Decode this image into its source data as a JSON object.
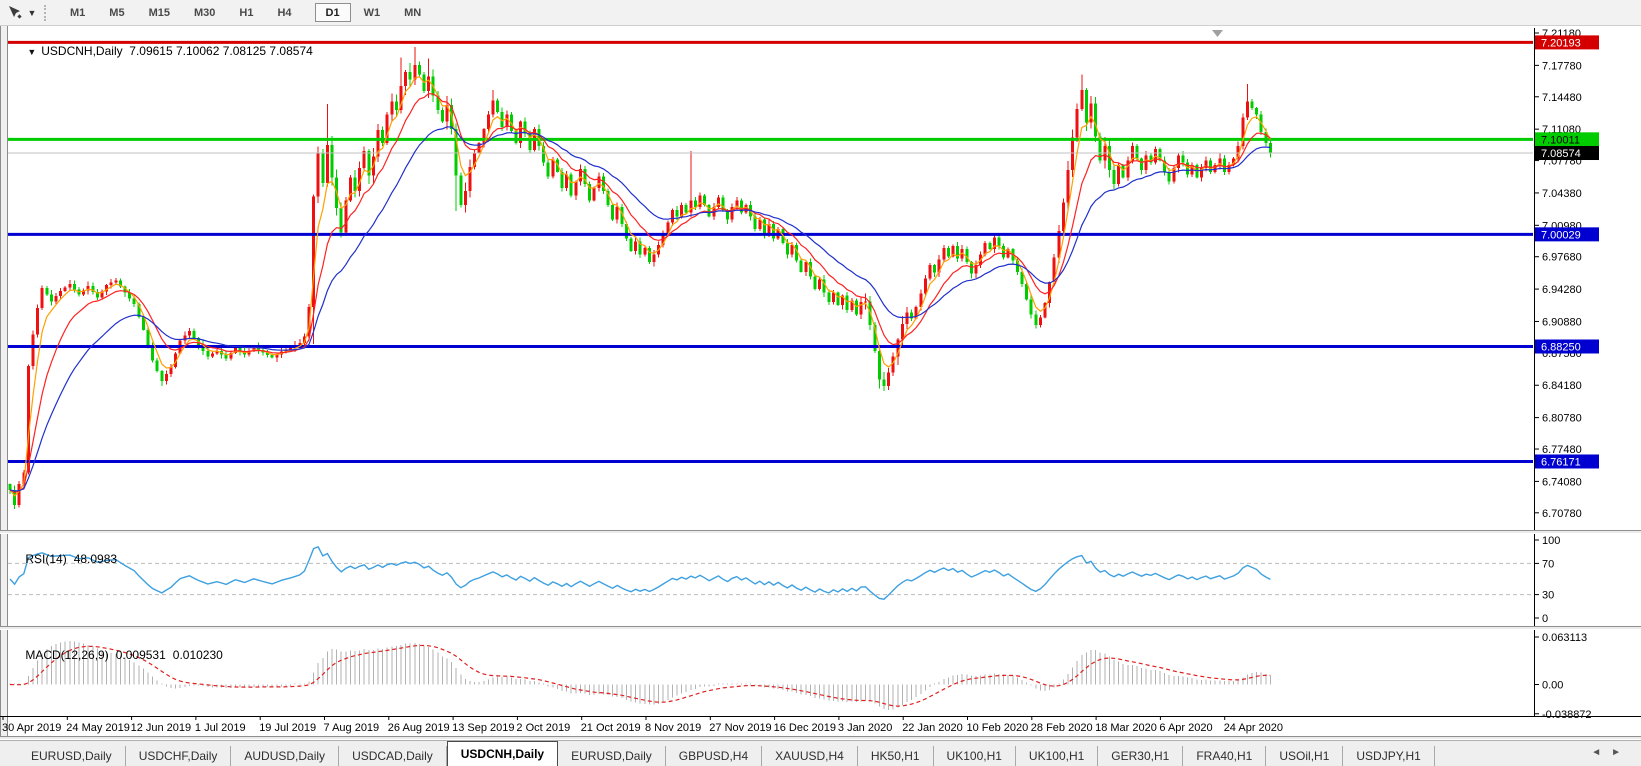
{
  "window": {
    "toolbar": {
      "timeframes": [
        "M1",
        "M5",
        "M15",
        "M30",
        "H1",
        "H4",
        "D1",
        "W1",
        "MN"
      ],
      "active_timeframe": "D1"
    }
  },
  "chart_data": {
    "type": "candlestick+indicators",
    "symbol": "USDCNH",
    "period": "Daily",
    "title": {
      "collapse_glyph": "▼",
      "symbol": "USDCNH,Daily",
      "ohlc_text": "7.09615 7.10062 7.08125 7.08574",
      "open": "7.09615",
      "high": "7.10062",
      "low": "7.08125",
      "close": "7.08574"
    },
    "y_axis_ticks": [
      "7.21180",
      "7.17780",
      "7.14480",
      "7.11080",
      "7.07780",
      "7.04380",
      "7.00980",
      "6.97680",
      "6.94280",
      "6.90880",
      "6.87580",
      "6.84180",
      "6.80780",
      "6.77480",
      "6.74080",
      "6.70780"
    ],
    "price_levels": [
      {
        "label": "7.20193",
        "value": 7.20193,
        "line_color": "#d40000",
        "line_width": 3,
        "badge_bg": "#d40000",
        "badge_fg": "#ffffff",
        "kind": "resistance"
      },
      {
        "label": "7.10011",
        "value": 7.10011,
        "line_color": "#00cc00",
        "line_width": 3,
        "badge_bg": "#00cc00",
        "badge_fg": "#000000",
        "kind": "level"
      },
      {
        "label": "7.00029",
        "value": 7.00029,
        "line_color": "#0000d0",
        "line_width": 3,
        "badge_bg": "#0000d0",
        "badge_fg": "#ffffff",
        "kind": "support"
      },
      {
        "label": "6.88250",
        "value": 6.8825,
        "line_color": "#0000d0",
        "line_width": 3,
        "badge_bg": "#0000d0",
        "badge_fg": "#ffffff",
        "kind": "support"
      },
      {
        "label": "6.76171",
        "value": 6.76171,
        "line_color": "#0000d0",
        "line_width": 3,
        "badge_bg": "#0000d0",
        "badge_fg": "#ffffff",
        "kind": "support"
      }
    ],
    "current_price": {
      "label": "7.08574",
      "value": 7.08574,
      "line_color": "#c0c0c0",
      "badge_bg": "#000000",
      "badge_fg": "#ffffff"
    },
    "x_axis_labels": [
      "30 Apr 2019",
      "24 May 2019",
      "12 Jun 2019",
      "1 Jul 2019",
      "19 Jul 2019",
      "7 Aug 2019",
      "26 Aug 2019",
      "13 Sep 2019",
      "2 Oct 2019",
      "21 Oct 2019",
      "8 Nov 2019",
      "27 Nov 2019",
      "16 Dec 2019",
      "3 Jan 2020",
      "22 Jan 2020",
      "10 Feb 2020",
      "28 Feb 2020",
      "18 Mar 2020",
      "6 Apr 2020",
      "24 Apr 2020"
    ],
    "colors": {
      "bull_candle": "#ee1111",
      "bear_candle": "#00cc00",
      "rsi_line": "#3da0e0",
      "macd_hist": "#b2b2b2",
      "macd_signal": "#e02020"
    },
    "candles": {
      "count": 275,
      "anchors": [
        [
          0,
          6.732
        ],
        [
          1,
          6.716
        ],
        [
          2,
          6.738
        ],
        [
          3,
          6.75
        ],
        [
          4,
          6.862
        ],
        [
          5,
          6.895
        ],
        [
          6,
          6.923
        ],
        [
          7,
          6.944
        ],
        [
          9,
          6.93
        ],
        [
          11,
          6.941
        ],
        [
          13,
          6.948
        ],
        [
          15,
          6.937
        ],
        [
          17,
          6.946
        ],
        [
          19,
          6.934
        ],
        [
          21,
          6.947
        ],
        [
          23,
          6.952
        ],
        [
          25,
          6.939
        ],
        [
          27,
          6.927
        ],
        [
          29,
          6.9
        ],
        [
          31,
          6.868
        ],
        [
          33,
          6.846
        ],
        [
          35,
          6.861
        ],
        [
          37,
          6.889
        ],
        [
          39,
          6.899
        ],
        [
          41,
          6.884
        ],
        [
          43,
          6.872
        ],
        [
          45,
          6.878
        ],
        [
          47,
          6.87
        ],
        [
          49,
          6.881
        ],
        [
          51,
          6.874
        ],
        [
          53,
          6.882
        ],
        [
          55,
          6.876
        ],
        [
          57,
          6.871
        ],
        [
          59,
          6.877
        ],
        [
          61,
          6.881
        ],
        [
          63,
          6.886
        ],
        [
          64,
          6.893
        ],
        [
          65,
          6.924
        ],
        [
          66,
          7.04
        ],
        [
          67,
          7.085
        ],
        [
          68,
          7.054
        ],
        [
          69,
          7.094
        ],
        [
          70,
          7.06
        ],
        [
          71,
          7.028
        ],
        [
          72,
          7.002
        ],
        [
          73,
          7.036
        ],
        [
          74,
          7.06
        ],
        [
          75,
          7.046
        ],
        [
          76,
          7.07
        ],
        [
          77,
          7.088
        ],
        [
          78,
          7.062
        ],
        [
          79,
          7.082
        ],
        [
          80,
          7.11
        ],
        [
          81,
          7.096
        ],
        [
          82,
          7.126
        ],
        [
          83,
          7.14
        ],
        [
          84,
          7.131
        ],
        [
          85,
          7.156
        ],
        [
          86,
          7.171
        ],
        [
          87,
          7.163
        ],
        [
          88,
          7.178
        ],
        [
          89,
          7.168
        ],
        [
          90,
          7.151
        ],
        [
          91,
          7.166
        ],
        [
          92,
          7.146
        ],
        [
          93,
          7.131
        ],
        [
          94,
          7.119
        ],
        [
          95,
          7.136
        ],
        [
          96,
          7.111
        ],
        [
          97,
          7.062
        ],
        [
          98,
          7.031
        ],
        [
          99,
          7.046
        ],
        [
          100,
          7.071
        ],
        [
          101,
          7.086
        ],
        [
          102,
          7.096
        ],
        [
          103,
          7.111
        ],
        [
          104,
          7.126
        ],
        [
          105,
          7.141
        ],
        [
          106,
          7.129
        ],
        [
          107,
          7.113
        ],
        [
          108,
          7.126
        ],
        [
          109,
          7.109
        ],
        [
          110,
          7.096
        ],
        [
          111,
          7.119
        ],
        [
          112,
          7.106
        ],
        [
          113,
          7.089
        ],
        [
          114,
          7.111
        ],
        [
          115,
          7.093
        ],
        [
          116,
          7.076
        ],
        [
          117,
          7.061
        ],
        [
          118,
          7.079
        ],
        [
          119,
          7.066
        ],
        [
          120,
          7.049
        ],
        [
          121,
          7.063
        ],
        [
          122,
          7.041
        ],
        [
          123,
          7.056
        ],
        [
          124,
          7.069
        ],
        [
          125,
          7.053
        ],
        [
          126,
          7.036
        ],
        [
          127,
          7.049
        ],
        [
          128,
          7.061
        ],
        [
          129,
          7.046
        ],
        [
          130,
          7.031
        ],
        [
          131,
          7.016
        ],
        [
          132,
          7.029
        ],
        [
          133,
          7.011
        ],
        [
          134,
          6.996
        ],
        [
          135,
          6.983
        ],
        [
          136,
          6.993
        ],
        [
          137,
          6.979
        ],
        [
          138,
          6.986
        ],
        [
          139,
          6.971
        ],
        [
          140,
          6.979
        ],
        [
          141,
          6.989
        ],
        [
          142,
          7.001
        ],
        [
          143,
          7.013
        ],
        [
          144,
          7.026
        ],
        [
          145,
          7.019
        ],
        [
          146,
          7.031
        ],
        [
          147,
          7.023
        ],
        [
          148,
          7.036
        ],
        [
          149,
          7.029
        ],
        [
          150,
          7.041
        ],
        [
          151,
          7.031
        ],
        [
          152,
          7.019
        ],
        [
          153,
          7.029
        ],
        [
          154,
          7.039
        ],
        [
          155,
          7.026
        ],
        [
          156,
          7.016
        ],
        [
          157,
          7.029
        ],
        [
          158,
          7.036
        ],
        [
          159,
          7.023
        ],
        [
          160,
          7.031
        ],
        [
          161,
          7.019
        ],
        [
          162,
          7.006
        ],
        [
          163,
          7.016
        ],
        [
          164,
          7.001
        ],
        [
          165,
          7.011
        ],
        [
          166,
          6.996
        ],
        [
          167,
          7.006
        ],
        [
          168,
          6.991
        ],
        [
          169,
          6.979
        ],
        [
          170,
          6.989
        ],
        [
          171,
          6.973
        ],
        [
          172,
          6.961
        ],
        [
          173,
          6.971
        ],
        [
          174,
          6.956
        ],
        [
          175,
          6.943
        ],
        [
          176,
          6.953
        ],
        [
          177,
          6.939
        ],
        [
          178,
          6.929
        ],
        [
          179,
          6.939
        ],
        [
          180,
          6.926
        ],
        [
          181,
          6.936
        ],
        [
          182,
          6.921
        ],
        [
          183,
          6.931
        ],
        [
          184,
          6.916
        ],
        [
          185,
          6.929
        ],
        [
          186,
          6.93
        ],
        [
          187,
          6.905
        ],
        [
          188,
          6.878
        ],
        [
          189,
          6.848
        ],
        [
          190,
          6.841
        ],
        [
          191,
          6.855
        ],
        [
          192,
          6.872
        ],
        [
          193,
          6.89
        ],
        [
          194,
          6.906
        ],
        [
          195,
          6.918
        ],
        [
          196,
          6.912
        ],
        [
          197,
          6.924
        ],
        [
          198,
          6.938
        ],
        [
          199,
          6.954
        ],
        [
          200,
          6.968
        ],
        [
          201,
          6.96
        ],
        [
          202,
          6.974
        ],
        [
          203,
          6.986
        ],
        [
          204,
          6.977
        ],
        [
          205,
          6.988
        ],
        [
          206,
          6.975
        ],
        [
          207,
          6.985
        ],
        [
          208,
          6.971
        ],
        [
          209,
          6.959
        ],
        [
          210,
          6.968
        ],
        [
          211,
          6.979
        ],
        [
          212,
          6.991
        ],
        [
          213,
          6.985
        ],
        [
          214,
          6.997
        ],
        [
          215,
          6.988
        ],
        [
          216,
          6.976
        ],
        [
          217,
          6.985
        ],
        [
          218,
          6.973
        ],
        [
          219,
          6.961
        ],
        [
          220,
          6.948
        ],
        [
          221,
          6.932
        ],
        [
          222,
          6.916
        ],
        [
          223,
          6.905
        ],
        [
          224,
          6.913
        ],
        [
          225,
          6.928
        ],
        [
          226,
          6.95
        ],
        [
          227,
          6.976
        ],
        [
          228,
          7.004
        ],
        [
          229,
          7.034
        ],
        [
          230,
          7.068
        ],
        [
          231,
          7.102
        ],
        [
          232,
          7.132
        ],
        [
          233,
          7.152
        ],
        [
          234,
          7.118
        ],
        [
          235,
          7.138
        ],
        [
          236,
          7.103
        ],
        [
          237,
          7.078
        ],
        [
          238,
          7.093
        ],
        [
          239,
          7.068
        ],
        [
          240,
          7.053
        ],
        [
          241,
          7.073
        ],
        [
          242,
          7.06
        ],
        [
          243,
          7.078
        ],
        [
          244,
          7.093
        ],
        [
          245,
          7.08
        ],
        [
          246,
          7.068
        ],
        [
          247,
          7.083
        ],
        [
          248,
          7.076
        ],
        [
          249,
          7.09
        ],
        [
          250,
          7.078
        ],
        [
          251,
          7.066
        ],
        [
          252,
          7.056
        ],
        [
          253,
          7.07
        ],
        [
          254,
          7.083
        ],
        [
          255,
          7.076
        ],
        [
          256,
          7.063
        ],
        [
          257,
          7.073
        ],
        [
          258,
          7.06
        ],
        [
          259,
          7.07
        ],
        [
          260,
          7.078
        ],
        [
          261,
          7.066
        ],
        [
          262,
          7.073
        ],
        [
          263,
          7.08
        ],
        [
          264,
          7.066
        ],
        [
          265,
          7.073
        ],
        [
          266,
          7.08
        ],
        [
          267,
          7.093
        ],
        [
          268,
          7.123
        ],
        [
          269,
          7.14
        ],
        [
          270,
          7.133
        ],
        [
          271,
          7.126
        ],
        [
          272,
          7.108
        ],
        [
          273,
          7.0962
        ],
        [
          274,
          7.08574
        ]
      ],
      "wick_overrides": [
        [
          4,
          null,
          6.748
        ],
        [
          66,
          null,
          6.885
        ],
        [
          69,
          7.137,
          null
        ],
        [
          85,
          7.186,
          null
        ],
        [
          88,
          7.197,
          null
        ],
        [
          91,
          7.185,
          null
        ],
        [
          97,
          null,
          7.025
        ],
        [
          105,
          7.152,
          null
        ],
        [
          148,
          7.088,
          null
        ],
        [
          190,
          null,
          6.8355
        ],
        [
          233,
          7.168,
          null
        ],
        [
          269,
          7.158,
          null
        ]
      ],
      "last": {
        "open": 7.09615,
        "high": 7.10062,
        "low": 7.08125,
        "close": 7.08574
      }
    },
    "moving_averages": [
      {
        "name": "fast",
        "period": 4,
        "color": "#ff9f00"
      },
      {
        "name": "mid",
        "period": 10,
        "color": "#ff2222"
      },
      {
        "name": "slow",
        "period": 22,
        "color": "#2030cc"
      }
    ],
    "rsi": {
      "label": "RSI(14)",
      "current": "48.0983",
      "period": 14,
      "scale": [
        "100",
        "70",
        "30",
        "0"
      ],
      "upper": 70,
      "lower": 30
    },
    "macd": {
      "label": "MACD(12,26,9)",
      "main": "0.009531",
      "signal_val": "0.010230",
      "fast": 12,
      "slow": 26,
      "signal": 9,
      "scale": [
        "0.063113",
        "0.00",
        "-0.038872"
      ]
    }
  },
  "tabs": {
    "items": [
      "EURUSD,Daily",
      "USDCHF,Daily",
      "AUDUSD,Daily",
      "USDCAD,Daily",
      "USDCNH,Daily",
      "EURUSD,Daily",
      "GBPUSD,H4",
      "XAUUSD,H4",
      "HK50,H1",
      "UK100,H1",
      "UK100,H1",
      "GER30,H1",
      "FRA40,H1",
      "USOil,H1",
      "USDJPY,H1"
    ],
    "active_index": 4,
    "scroll_left": "◄",
    "scroll_right": "►"
  }
}
